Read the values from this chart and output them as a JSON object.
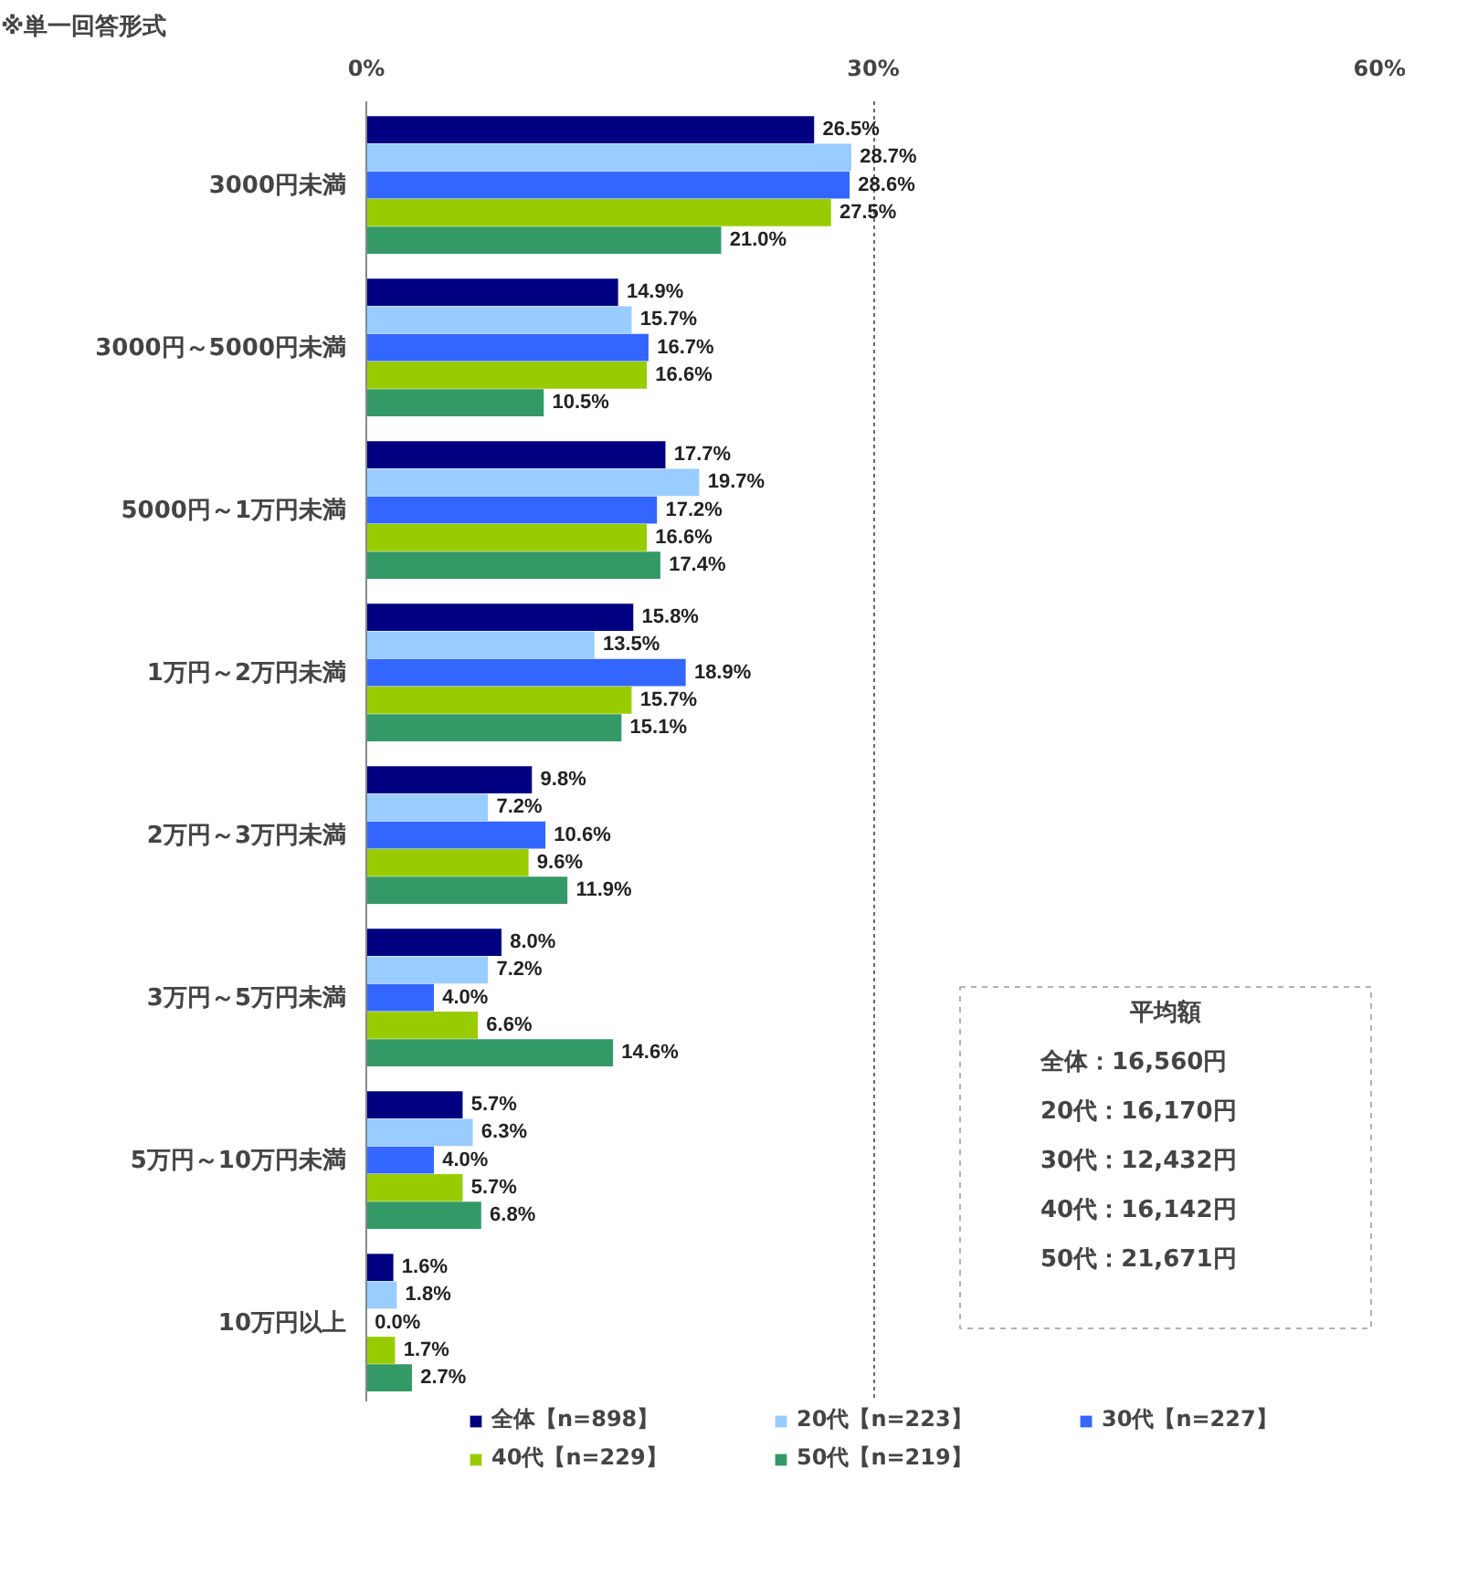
{
  "chart_data": {
    "type": "bar",
    "orientation": "horizontal",
    "title": "※単一回答形式",
    "categories": [
      "3000円未満",
      "3000円～5000円未満",
      "5000円～1万円未満",
      "1万円～2万円未満",
      "2万円～3万円未満",
      "3万円～5万円未満",
      "5万円～10万円未満",
      "10万円以上"
    ],
    "series": [
      {
        "name": "全体【n=898】",
        "color": "#000080",
        "values": [
          26.5,
          14.9,
          17.7,
          15.8,
          9.8,
          8.0,
          5.7,
          1.6
        ],
        "value_labels": [
          "26.5%",
          "14.9%",
          "17.7%",
          "15.8%",
          "9.8%",
          "8.0%",
          "5.7%",
          "1.6%"
        ]
      },
      {
        "name": "20代【n=223】",
        "color": "#99ccff",
        "values": [
          28.7,
          15.7,
          19.7,
          13.5,
          7.2,
          7.2,
          6.3,
          1.8
        ],
        "value_labels": [
          "28.7%",
          "15.7%",
          "19.7%",
          "13.5%",
          "7.2%",
          "7.2%",
          "6.3%",
          "1.8%"
        ]
      },
      {
        "name": "30代【n=227】",
        "color": "#3366ff",
        "values": [
          28.6,
          16.7,
          17.2,
          18.9,
          10.6,
          4.0,
          4.0,
          0.0
        ],
        "value_labels": [
          "28.6%",
          "16.7%",
          "17.2%",
          "18.9%",
          "10.6%",
          "4.0%",
          "4.0%",
          "0.0%"
        ]
      },
      {
        "name": "40代【n=229】",
        "color": "#99cc00",
        "values": [
          27.5,
          16.6,
          16.6,
          15.7,
          9.6,
          6.6,
          5.7,
          1.7
        ],
        "value_labels": [
          "27.5%",
          "16.6%",
          "16.6%",
          "15.7%",
          "9.6%",
          "6.6%",
          "5.7%",
          "1.7%"
        ]
      },
      {
        "name": "50代【n=219】",
        "color": "#339966",
        "values": [
          21.0,
          10.5,
          17.4,
          15.1,
          11.9,
          14.6,
          6.8,
          2.7
        ],
        "value_labels": [
          "21.0%",
          "10.5%",
          "17.4%",
          "15.1%",
          "11.9%",
          "14.6%",
          "6.8%",
          "2.7%"
        ]
      }
    ],
    "xlim": [
      0,
      60
    ],
    "xticks": [
      {
        "value": 0,
        "label": "0%"
      },
      {
        "value": 30,
        "label": "30%"
      },
      {
        "value": 60,
        "label": "60%"
      }
    ],
    "grid": "x",
    "legend": "bottom",
    "legend_title": "平均額",
    "annotations": [
      "全体：16,560円",
      "20代：16,170円",
      "30代：12,432円",
      "40代：16,142円",
      "50代：21,671円"
    ]
  }
}
